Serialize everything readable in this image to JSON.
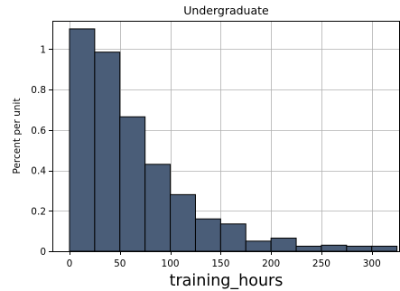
{
  "chart_data": {
    "type": "bar",
    "title": "Undergraduate",
    "xlabel": "training_hours",
    "ylabel": "Percent per unit",
    "xlim": [
      -17,
      328
    ],
    "ylim": [
      0,
      1.14
    ],
    "grid": true,
    "bar_color": "#4a5d78",
    "edge_color": "#000000",
    "x_ticks": [
      0,
      50,
      100,
      150,
      200,
      250,
      300
    ],
    "y_ticks": [
      0,
      0.2,
      0.4,
      0.6,
      0.8,
      1
    ],
    "x_tick_labels": [
      "0",
      "50",
      "100",
      "150",
      "200",
      "250",
      "300"
    ],
    "y_tick_labels": [
      "0",
      "0.2",
      "0.4",
      "0.6",
      "0.8",
      "1"
    ],
    "bins": [
      {
        "start": 0,
        "end": 25,
        "value": 1.1
      },
      {
        "start": 25,
        "end": 50,
        "value": 0.985
      },
      {
        "start": 50,
        "end": 75,
        "value": 0.665
      },
      {
        "start": 75,
        "end": 100,
        "value": 0.43
      },
      {
        "start": 100,
        "end": 125,
        "value": 0.28
      },
      {
        "start": 125,
        "end": 150,
        "value": 0.16
      },
      {
        "start": 150,
        "end": 175,
        "value": 0.135
      },
      {
        "start": 175,
        "end": 200,
        "value": 0.05
      },
      {
        "start": 200,
        "end": 225,
        "value": 0.065
      },
      {
        "start": 225,
        "end": 250,
        "value": 0.025
      },
      {
        "start": 250,
        "end": 275,
        "value": 0.03
      },
      {
        "start": 275,
        "end": 300,
        "value": 0.025
      },
      {
        "start": 300,
        "end": 325,
        "value": 0.025
      }
    ]
  }
}
